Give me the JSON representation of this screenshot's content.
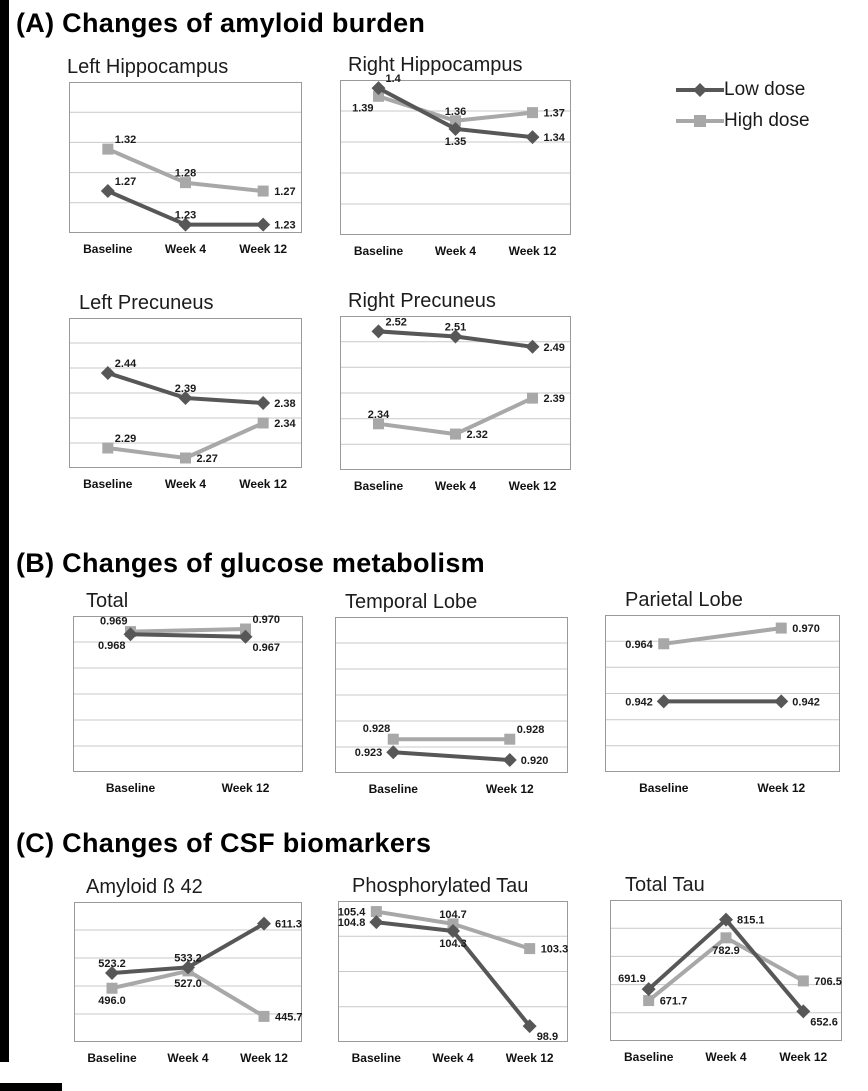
{
  "colors": {
    "low_dose": "#575757",
    "high_dose": "#a8a8a8",
    "label_text": "#1a1a1a",
    "grid": "#c9c9c9",
    "plot_border": "#9a9a9a"
  },
  "sections": [
    {
      "id": "A",
      "label": "(A) Changes of amyloid burden"
    },
    {
      "id": "B",
      "label": "(B) Changes of glucose metabolism"
    },
    {
      "id": "C",
      "label": "(C) Changes of CSF biomarkers"
    }
  ],
  "legend": {
    "items": [
      {
        "label": "Low dose",
        "series": "low_dose",
        "marker": "diamond"
      },
      {
        "label": "High dose",
        "series": "high_dose",
        "marker": "square"
      }
    ]
  },
  "chart_data": [
    {
      "id": "left_hippocampus",
      "section": "A",
      "type": "line",
      "title": "Left Hippocampus",
      "categories": [
        "Baseline",
        "Week 4",
        "Week 12"
      ],
      "ylim": [
        1.22,
        1.4
      ],
      "grid_bands": 5,
      "legend_position": "top-right-of-figure",
      "series": [
        {
          "name": "Low dose",
          "key": "low_dose",
          "marker": "diamond",
          "values": [
            1.27,
            1.23,
            1.23
          ],
          "labels": [
            "1.27",
            "1.23",
            "1.23"
          ],
          "label_pos": [
            "above-right",
            "above",
            "right"
          ]
        },
        {
          "name": "High dose",
          "key": "high_dose",
          "marker": "square",
          "values": [
            1.32,
            1.28,
            1.27
          ],
          "labels": [
            "1.32",
            "1.28",
            "1.27"
          ],
          "label_pos": [
            "above-right",
            "above",
            "right"
          ]
        }
      ]
    },
    {
      "id": "right_hippocampus",
      "section": "A",
      "type": "line",
      "title": "Right Hippocampus",
      "categories": [
        "Baseline",
        "Week 4",
        "Week 12"
      ],
      "ylim": [
        1.22,
        1.41
      ],
      "grid_bands": 5,
      "series": [
        {
          "name": "Low dose",
          "key": "low_dose",
          "marker": "diamond",
          "values": [
            1.4,
            1.35,
            1.34
          ],
          "labels": [
            "1.4",
            "1.35",
            "1.34"
          ],
          "label_pos": [
            "above-right",
            "below",
            "right"
          ]
        },
        {
          "name": "High dose",
          "key": "high_dose",
          "marker": "square",
          "values": [
            1.39,
            1.36,
            1.37
          ],
          "labels": [
            "1.39",
            "1.36",
            "1.37"
          ],
          "label_pos": [
            "below-left",
            "above",
            "right"
          ]
        }
      ]
    },
    {
      "id": "left_precuneus",
      "section": "A",
      "type": "line",
      "title": "Left Precuneus",
      "categories": [
        "Baseline",
        "Week 4",
        "Week 12"
      ],
      "ylim": [
        2.25,
        2.55
      ],
      "grid_bands": 6,
      "series": [
        {
          "name": "Low dose",
          "key": "low_dose",
          "marker": "diamond",
          "values": [
            2.44,
            2.39,
            2.38
          ],
          "labels": [
            "2.44",
            "2.39",
            "2.38"
          ],
          "label_pos": [
            "above-right",
            "above",
            "right"
          ]
        },
        {
          "name": "High dose",
          "key": "high_dose",
          "marker": "square",
          "values": [
            2.29,
            2.27,
            2.34
          ],
          "labels": [
            "2.29",
            "2.27",
            "2.34"
          ],
          "label_pos": [
            "above-right",
            "right",
            "right"
          ]
        }
      ]
    },
    {
      "id": "right_precuneus",
      "section": "A",
      "type": "line",
      "title": "Right Precuneus",
      "categories": [
        "Baseline",
        "Week 4",
        "Week 12"
      ],
      "ylim": [
        2.25,
        2.55
      ],
      "grid_bands": 6,
      "series": [
        {
          "name": "Low dose",
          "key": "low_dose",
          "marker": "diamond",
          "values": [
            2.52,
            2.51,
            2.49
          ],
          "labels": [
            "2.52",
            "2.51",
            "2.49"
          ],
          "label_pos": [
            "above-right",
            "above",
            "right"
          ]
        },
        {
          "name": "High dose",
          "key": "high_dose",
          "marker": "square",
          "values": [
            2.34,
            2.32,
            2.39
          ],
          "labels": [
            "2.34",
            "2.32",
            "2.39"
          ],
          "label_pos": [
            "above",
            "right",
            "right"
          ]
        }
      ]
    },
    {
      "id": "total",
      "section": "B",
      "type": "line",
      "title": "Total",
      "categories": [
        "Baseline",
        "Week 12"
      ],
      "ylim": [
        0.915,
        0.975
      ],
      "grid_bands": 6,
      "series": [
        {
          "name": "Low dose",
          "key": "low_dose",
          "marker": "diamond",
          "values": [
            0.968,
            0.967
          ],
          "labels": [
            "0.968",
            "0.967"
          ],
          "label_pos": [
            "below-left",
            "below-right"
          ]
        },
        {
          "name": "High dose",
          "key": "high_dose",
          "marker": "square",
          "values": [
            0.969,
            0.97
          ],
          "labels": [
            "0.969",
            "0.970"
          ],
          "label_pos": [
            "above-left",
            "above-right"
          ]
        }
      ]
    },
    {
      "id": "temporal_lobe",
      "section": "B",
      "type": "line",
      "title": "Temporal Lobe",
      "categories": [
        "Baseline",
        "Week 12"
      ],
      "ylim": [
        0.915,
        0.975
      ],
      "grid_bands": 6,
      "series": [
        {
          "name": "Low dose",
          "key": "low_dose",
          "marker": "diamond",
          "values": [
            0.923,
            0.92
          ],
          "labels": [
            "0.923",
            "0.920"
          ],
          "label_pos": [
            "left",
            "right"
          ]
        },
        {
          "name": "High dose",
          "key": "high_dose",
          "marker": "square",
          "values": [
            0.928,
            0.928
          ],
          "labels": [
            "0.928",
            "0.928"
          ],
          "label_pos": [
            "above-left",
            "above-right"
          ]
        }
      ]
    },
    {
      "id": "parietal_lobe",
      "section": "B",
      "type": "line",
      "title": "Parietal Lobe",
      "categories": [
        "Baseline",
        "Week 12"
      ],
      "ylim": [
        0.915,
        0.975
      ],
      "grid_bands": 6,
      "series": [
        {
          "name": "Low dose",
          "key": "low_dose",
          "marker": "diamond",
          "values": [
            0.942,
            0.942
          ],
          "labels": [
            "0.942",
            "0.942"
          ],
          "label_pos": [
            "left",
            "right"
          ]
        },
        {
          "name": "High dose",
          "key": "high_dose",
          "marker": "square",
          "values": [
            0.964,
            0.97
          ],
          "labels": [
            "0.964",
            "0.970"
          ],
          "label_pos": [
            "left",
            "right"
          ]
        }
      ]
    },
    {
      "id": "amyloid_b42",
      "section": "C",
      "type": "line",
      "title": "Amyloid ß 42",
      "categories": [
        "Baseline",
        "Week 4",
        "Week 12"
      ],
      "ylim": [
        400,
        650
      ],
      "grid_bands": 5,
      "series": [
        {
          "name": "Low dose",
          "key": "low_dose",
          "marker": "diamond",
          "values": [
            523.2,
            533.2,
            611.3
          ],
          "labels": [
            "523.2",
            "533.2",
            "611.3"
          ],
          "label_pos": [
            "above",
            "above",
            "right"
          ]
        },
        {
          "name": "High dose",
          "key": "high_dose",
          "marker": "square",
          "values": [
            496.0,
            527.0,
            445.7
          ],
          "labels": [
            "496.0",
            "527.0",
            "445.7"
          ],
          "label_pos": [
            "below",
            "below",
            "right"
          ]
        }
      ]
    },
    {
      "id": "phosphorylated_tau",
      "section": "C",
      "type": "line",
      "title": "Phosphorylated Tau",
      "categories": [
        "Baseline",
        "Week 4",
        "Week 12"
      ],
      "ylim": [
        98,
        106
      ],
      "grid_bands": 4,
      "series": [
        {
          "name": "Low dose",
          "key": "low_dose",
          "marker": "diamond",
          "values": [
            104.8,
            104.3,
            98.9
          ],
          "labels": [
            "104.8",
            "104.3",
            "98.9"
          ],
          "label_pos": [
            "left",
            "below",
            "below-right"
          ]
        },
        {
          "name": "High dose",
          "key": "high_dose",
          "marker": "square",
          "values": [
            105.4,
            104.7,
            103.3
          ],
          "labels": [
            "105.4",
            "104.7",
            "103.3"
          ],
          "label_pos": [
            "left",
            "above",
            "right"
          ]
        }
      ]
    },
    {
      "id": "total_tau",
      "section": "C",
      "type": "line",
      "title": "Total Tau",
      "categories": [
        "Baseline",
        "Week 4",
        "Week 12"
      ],
      "ylim": [
        600,
        850
      ],
      "grid_bands": 5,
      "series": [
        {
          "name": "Low dose",
          "key": "low_dose",
          "marker": "diamond",
          "values": [
            691.9,
            815.1,
            652.6
          ],
          "labels": [
            "691.9",
            "815.1",
            "652.6"
          ],
          "label_pos": [
            "above-left",
            "right",
            "below-right"
          ]
        },
        {
          "name": "High dose",
          "key": "high_dose",
          "marker": "square",
          "values": [
            671.7,
            782.9,
            706.5
          ],
          "labels": [
            "671.7",
            "782.9",
            "706.5"
          ],
          "label_pos": [
            "right",
            "below",
            "right"
          ]
        }
      ]
    }
  ]
}
